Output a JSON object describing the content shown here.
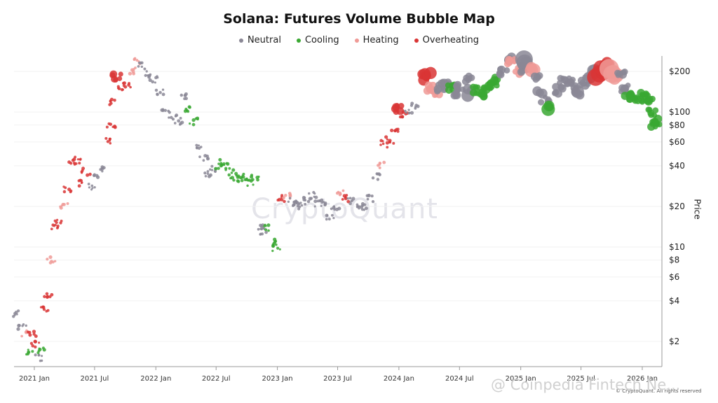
{
  "chart_data": {
    "type": "scatter",
    "title": "Solana: Futures Volume Bubble Map",
    "ylabel": "Price",
    "y_scale": "log",
    "ylim": [
      1.3,
      260
    ],
    "xlim": [
      "2020-11-01",
      "2026-03-01"
    ],
    "x_ticks": [
      "2021 Jan",
      "2021 Jul",
      "2022 Jan",
      "2022 Jul",
      "2023 Jan",
      "2023 Jul",
      "2024 Jan",
      "2024 Jul",
      "2025 Jan",
      "2025 Jul",
      "2026 Jan"
    ],
    "y_ticks": [
      {
        "value": 200,
        "label": "$200"
      },
      {
        "value": 100,
        "label": "$100"
      },
      {
        "value": 80,
        "label": "$80"
      },
      {
        "value": 60,
        "label": "$60"
      },
      {
        "value": 40,
        "label": "$40"
      },
      {
        "value": 20,
        "label": "$20"
      },
      {
        "value": 10,
        "label": "$10"
      },
      {
        "value": 8,
        "label": "$8"
      },
      {
        "value": 6,
        "label": "$6"
      },
      {
        "value": 4,
        "label": "$4"
      },
      {
        "value": 2,
        "label": "$2"
      }
    ],
    "legend": [
      {
        "name": "Neutral",
        "color": "#8a8795"
      },
      {
        "name": "Cooling",
        "color": "#3aa832"
      },
      {
        "name": "Heating",
        "color": "#f09a96"
      },
      {
        "name": "Overheating",
        "color": "#d93535"
      }
    ],
    "grid": true,
    "legend_position": "top-center",
    "points": [
      {
        "x": "2020-11-10",
        "y": 3.2,
        "cat": "Neutral",
        "vol": 1
      },
      {
        "x": "2020-11-25",
        "y": 2.6,
        "cat": "Neutral",
        "vol": 1
      },
      {
        "x": "2020-12-05",
        "y": 2.3,
        "cat": "Heating",
        "vol": 1
      },
      {
        "x": "2020-12-15",
        "y": 1.65,
        "cat": "Cooling",
        "vol": 1
      },
      {
        "x": "2020-12-25",
        "y": 2.3,
        "cat": "Overheating",
        "vol": 1
      },
      {
        "x": "2021-01-05",
        "y": 1.9,
        "cat": "Overheating",
        "vol": 1
      },
      {
        "x": "2021-01-15",
        "y": 1.5,
        "cat": "Neutral",
        "vol": 1
      },
      {
        "x": "2021-01-25",
        "y": 1.7,
        "cat": "Cooling",
        "vol": 1
      },
      {
        "x": "2021-02-01",
        "y": 3.4,
        "cat": "Overheating",
        "vol": 1
      },
      {
        "x": "2021-02-10",
        "y": 4.5,
        "cat": "Overheating",
        "vol": 1
      },
      {
        "x": "2021-02-20",
        "y": 8,
        "cat": "Heating",
        "vol": 1
      },
      {
        "x": "2021-03-01",
        "y": 14,
        "cat": "Overheating",
        "vol": 1
      },
      {
        "x": "2021-03-15",
        "y": 15,
        "cat": "Overheating",
        "vol": 1
      },
      {
        "x": "2021-04-01",
        "y": 20,
        "cat": "Heating",
        "vol": 1
      },
      {
        "x": "2021-04-10",
        "y": 27,
        "cat": "Overheating",
        "vol": 1
      },
      {
        "x": "2021-04-25",
        "y": 42,
        "cat": "Overheating",
        "vol": 1
      },
      {
        "x": "2021-05-10",
        "y": 44,
        "cat": "Overheating",
        "vol": 1
      },
      {
        "x": "2021-05-20",
        "y": 30,
        "cat": "Overheating",
        "vol": 1
      },
      {
        "x": "2021-06-05",
        "y": 36,
        "cat": "Overheating",
        "vol": 1
      },
      {
        "x": "2021-06-20",
        "y": 28,
        "cat": "Neutral",
        "vol": 1
      },
      {
        "x": "2021-07-10",
        "y": 33,
        "cat": "Neutral",
        "vol": 1
      },
      {
        "x": "2021-07-25",
        "y": 38,
        "cat": "Neutral",
        "vol": 1
      },
      {
        "x": "2021-08-10",
        "y": 60,
        "cat": "Overheating",
        "vol": 1
      },
      {
        "x": "2021-08-20",
        "y": 80,
        "cat": "Overheating",
        "vol": 1
      },
      {
        "x": "2021-08-28",
        "y": 120,
        "cat": "Overheating",
        "vol": 1
      },
      {
        "x": "2021-09-05",
        "y": 180,
        "cat": "Overheating",
        "vol": 2
      },
      {
        "x": "2021-09-20",
        "y": 150,
        "cat": "Overheating",
        "vol": 1
      },
      {
        "x": "2021-10-05",
        "y": 160,
        "cat": "Overheating",
        "vol": 1
      },
      {
        "x": "2021-10-20",
        "y": 200,
        "cat": "Heating",
        "vol": 1
      },
      {
        "x": "2021-11-06",
        "y": 240,
        "cat": "Heating",
        "vol": 1
      },
      {
        "x": "2021-11-20",
        "y": 220,
        "cat": "Neutral",
        "vol": 1
      },
      {
        "x": "2021-12-05",
        "y": 190,
        "cat": "Neutral",
        "vol": 1
      },
      {
        "x": "2021-12-25",
        "y": 175,
        "cat": "Neutral",
        "vol": 1
      },
      {
        "x": "2022-01-15",
        "y": 140,
        "cat": "Neutral",
        "vol": 1
      },
      {
        "x": "2022-02-01",
        "y": 100,
        "cat": "Neutral",
        "vol": 1
      },
      {
        "x": "2022-02-20",
        "y": 90,
        "cat": "Neutral",
        "vol": 1
      },
      {
        "x": "2022-03-10",
        "y": 85,
        "cat": "Neutral",
        "vol": 1
      },
      {
        "x": "2022-03-28",
        "y": 130,
        "cat": "Neutral",
        "vol": 1
      },
      {
        "x": "2022-04-10",
        "y": 105,
        "cat": "Cooling",
        "vol": 1
      },
      {
        "x": "2022-04-25",
        "y": 85,
        "cat": "Cooling",
        "vol": 1
      },
      {
        "x": "2022-05-10",
        "y": 55,
        "cat": "Neutral",
        "vol": 1
      },
      {
        "x": "2022-05-25",
        "y": 45,
        "cat": "Neutral",
        "vol": 1
      },
      {
        "x": "2022-06-10",
        "y": 35,
        "cat": "Neutral",
        "vol": 1
      },
      {
        "x": "2022-06-25",
        "y": 38,
        "cat": "Neutral",
        "vol": 1
      },
      {
        "x": "2022-07-10",
        "y": 40,
        "cat": "Cooling",
        "vol": 1
      },
      {
        "x": "2022-07-25",
        "y": 43,
        "cat": "Cooling",
        "vol": 1
      },
      {
        "x": "2022-08-10",
        "y": 36,
        "cat": "Cooling",
        "vol": 1
      },
      {
        "x": "2022-08-25",
        "y": 33,
        "cat": "Cooling",
        "vol": 1
      },
      {
        "x": "2022-09-10",
        "y": 32,
        "cat": "Cooling",
        "vol": 1
      },
      {
        "x": "2022-09-25",
        "y": 33,
        "cat": "Cooling",
        "vol": 1
      },
      {
        "x": "2022-10-10",
        "y": 30,
        "cat": "Cooling",
        "vol": 1
      },
      {
        "x": "2022-10-25",
        "y": 33,
        "cat": "Cooling",
        "vol": 1
      },
      {
        "x": "2022-11-08",
        "y": 14,
        "cat": "Neutral",
        "vol": 1
      },
      {
        "x": "2022-11-20",
        "y": 13,
        "cat": "Neutral",
        "vol": 1
      },
      {
        "x": "2022-12-05",
        "y": 14,
        "cat": "Cooling",
        "vol": 1
      },
      {
        "x": "2022-12-20",
        "y": 11,
        "cat": "Cooling",
        "vol": 1
      },
      {
        "x": "2022-12-29",
        "y": 9.8,
        "cat": "Cooling",
        "vol": 1
      },
      {
        "x": "2023-01-15",
        "y": 23,
        "cat": "Overheating",
        "vol": 1
      },
      {
        "x": "2023-02-01",
        "y": 24,
        "cat": "Heating",
        "vol": 1
      },
      {
        "x": "2023-02-15",
        "y": 22,
        "cat": "Neutral",
        "vol": 1
      },
      {
        "x": "2023-03-01",
        "y": 21,
        "cat": "Neutral",
        "vol": 1
      },
      {
        "x": "2023-03-15",
        "y": 20,
        "cat": "Neutral",
        "vol": 1
      },
      {
        "x": "2023-04-01",
        "y": 22,
        "cat": "Neutral",
        "vol": 1
      },
      {
        "x": "2023-04-15",
        "y": 24,
        "cat": "Neutral",
        "vol": 1
      },
      {
        "x": "2023-05-01",
        "y": 21,
        "cat": "Neutral",
        "vol": 1
      },
      {
        "x": "2023-05-20",
        "y": 21,
        "cat": "Neutral",
        "vol": 1
      },
      {
        "x": "2023-06-10",
        "y": 17,
        "cat": "Neutral",
        "vol": 1
      },
      {
        "x": "2023-06-25",
        "y": 19,
        "cat": "Neutral",
        "vol": 1
      },
      {
        "x": "2023-07-10",
        "y": 25,
        "cat": "Heating",
        "vol": 1
      },
      {
        "x": "2023-07-25",
        "y": 23,
        "cat": "Overheating",
        "vol": 1
      },
      {
        "x": "2023-08-10",
        "y": 22,
        "cat": "Neutral",
        "vol": 1
      },
      {
        "x": "2023-09-01",
        "y": 20,
        "cat": "Neutral",
        "vol": 1
      },
      {
        "x": "2023-09-20",
        "y": 20,
        "cat": "Neutral",
        "vol": 1
      },
      {
        "x": "2023-10-10",
        "y": 23,
        "cat": "Neutral",
        "vol": 1
      },
      {
        "x": "2023-10-25",
        "y": 33,
        "cat": "Neutral",
        "vol": 1
      },
      {
        "x": "2023-11-05",
        "y": 40,
        "cat": "Heating",
        "vol": 1
      },
      {
        "x": "2023-11-20",
        "y": 58,
        "cat": "Overheating",
        "vol": 1
      },
      {
        "x": "2023-12-05",
        "y": 62,
        "cat": "Overheating",
        "vol": 1
      },
      {
        "x": "2023-12-20",
        "y": 75,
        "cat": "Overheating",
        "vol": 1
      },
      {
        "x": "2024-01-01",
        "y": 105,
        "cat": "Overheating",
        "vol": 2
      },
      {
        "x": "2024-01-15",
        "y": 95,
        "cat": "Overheating",
        "vol": 1
      },
      {
        "x": "2024-02-01",
        "y": 100,
        "cat": "Neutral",
        "vol": 1
      },
      {
        "x": "2024-02-20",
        "y": 110,
        "cat": "Neutral",
        "vol": 1
      },
      {
        "x": "2024-03-10",
        "y": 180,
        "cat": "Overheating",
        "vol": 3
      },
      {
        "x": "2024-03-25",
        "y": 190,
        "cat": "Overheating",
        "vol": 3
      },
      {
        "x": "2024-04-05",
        "y": 150,
        "cat": "Heating",
        "vol": 2
      },
      {
        "x": "2024-04-20",
        "y": 140,
        "cat": "Heating",
        "vol": 2
      },
      {
        "x": "2024-05-05",
        "y": 150,
        "cat": "Neutral",
        "vol": 2
      },
      {
        "x": "2024-05-20",
        "y": 160,
        "cat": "Neutral",
        "vol": 2
      },
      {
        "x": "2024-06-05",
        "y": 150,
        "cat": "Cooling",
        "vol": 2
      },
      {
        "x": "2024-06-20",
        "y": 140,
        "cat": "Neutral",
        "vol": 2
      },
      {
        "x": "2024-07-05",
        "y": 150,
        "cat": "Neutral",
        "vol": 2
      },
      {
        "x": "2024-07-25",
        "y": 175,
        "cat": "Neutral",
        "vol": 2
      },
      {
        "x": "2024-08-05",
        "y": 140,
        "cat": "Neutral",
        "vol": 3
      },
      {
        "x": "2024-08-20",
        "y": 145,
        "cat": "Cooling",
        "vol": 2
      },
      {
        "x": "2024-09-05",
        "y": 135,
        "cat": "Cooling",
        "vol": 2
      },
      {
        "x": "2024-09-25",
        "y": 150,
        "cat": "Cooling",
        "vol": 2
      },
      {
        "x": "2024-10-10",
        "y": 155,
        "cat": "Cooling",
        "vol": 2
      },
      {
        "x": "2024-10-25",
        "y": 175,
        "cat": "Cooling",
        "vol": 2
      },
      {
        "x": "2024-11-10",
        "y": 200,
        "cat": "Neutral",
        "vol": 2
      },
      {
        "x": "2024-11-22",
        "y": 240,
        "cat": "Neutral",
        "vol": 3
      },
      {
        "x": "2024-12-05",
        "y": 230,
        "cat": "Heating",
        "vol": 2
      },
      {
        "x": "2024-12-20",
        "y": 200,
        "cat": "Heating",
        "vol": 2
      },
      {
        "x": "2025-01-10",
        "y": 210,
        "cat": "Neutral",
        "vol": 2
      },
      {
        "x": "2025-01-20",
        "y": 240,
        "cat": "Neutral",
        "vol": 4
      },
      {
        "x": "2025-02-01",
        "y": 210,
        "cat": "Heating",
        "vol": 3
      },
      {
        "x": "2025-02-15",
        "y": 180,
        "cat": "Neutral",
        "vol": 2
      },
      {
        "x": "2025-03-01",
        "y": 140,
        "cat": "Neutral",
        "vol": 3
      },
      {
        "x": "2025-03-15",
        "y": 125,
        "cat": "Neutral",
        "vol": 2
      },
      {
        "x": "2025-04-05",
        "y": 110,
        "cat": "Cooling",
        "vol": 3
      },
      {
        "x": "2025-04-25",
        "y": 145,
        "cat": "Neutral",
        "vol": 2
      },
      {
        "x": "2025-05-10",
        "y": 170,
        "cat": "Neutral",
        "vol": 2
      },
      {
        "x": "2025-05-25",
        "y": 170,
        "cat": "Neutral",
        "vol": 2
      },
      {
        "x": "2025-06-10",
        "y": 150,
        "cat": "Neutral",
        "vol": 2
      },
      {
        "x": "2025-06-25",
        "y": 140,
        "cat": "Neutral",
        "vol": 3
      },
      {
        "x": "2025-07-10",
        "y": 165,
        "cat": "Neutral",
        "vol": 2
      },
      {
        "x": "2025-07-25",
        "y": 180,
        "cat": "Neutral",
        "vol": 2
      },
      {
        "x": "2025-08-10",
        "y": 200,
        "cat": "Neutral",
        "vol": 3
      },
      {
        "x": "2025-08-25",
        "y": 190,
        "cat": "Overheating",
        "vol": 4
      },
      {
        "x": "2025-09-10",
        "y": 205,
        "cat": "Overheating",
        "vol": 4
      },
      {
        "x": "2025-09-20",
        "y": 225,
        "cat": "Overheating",
        "vol": 3
      },
      {
        "x": "2025-10-05",
        "y": 200,
        "cat": "Heating",
        "vol": 4
      },
      {
        "x": "2025-10-15",
        "y": 185,
        "cat": "Heating",
        "vol": 3
      },
      {
        "x": "2025-10-30",
        "y": 190,
        "cat": "Neutral",
        "vol": 2
      },
      {
        "x": "2025-11-10",
        "y": 150,
        "cat": "Neutral",
        "vol": 2
      },
      {
        "x": "2025-11-20",
        "y": 135,
        "cat": "Cooling",
        "vol": 2
      },
      {
        "x": "2025-12-05",
        "y": 130,
        "cat": "Cooling",
        "vol": 2
      },
      {
        "x": "2025-12-20",
        "y": 125,
        "cat": "Cooling",
        "vol": 2
      },
      {
        "x": "2026-01-05",
        "y": 135,
        "cat": "Cooling",
        "vol": 2
      },
      {
        "x": "2026-01-20",
        "y": 125,
        "cat": "Cooling",
        "vol": 2
      },
      {
        "x": "2026-02-01",
        "y": 100,
        "cat": "Cooling",
        "vol": 2
      },
      {
        "x": "2026-02-05",
        "y": 82,
        "cat": "Cooling",
        "vol": 2
      },
      {
        "x": "2026-02-10",
        "y": 85,
        "cat": "Cooling",
        "vol": 2
      }
    ]
  },
  "watermark": "CryptoQuant",
  "credit": "© CryptoQuant. All rights reserved",
  "overlay_watermark": "@ Coinpedia Fintech Ne..."
}
